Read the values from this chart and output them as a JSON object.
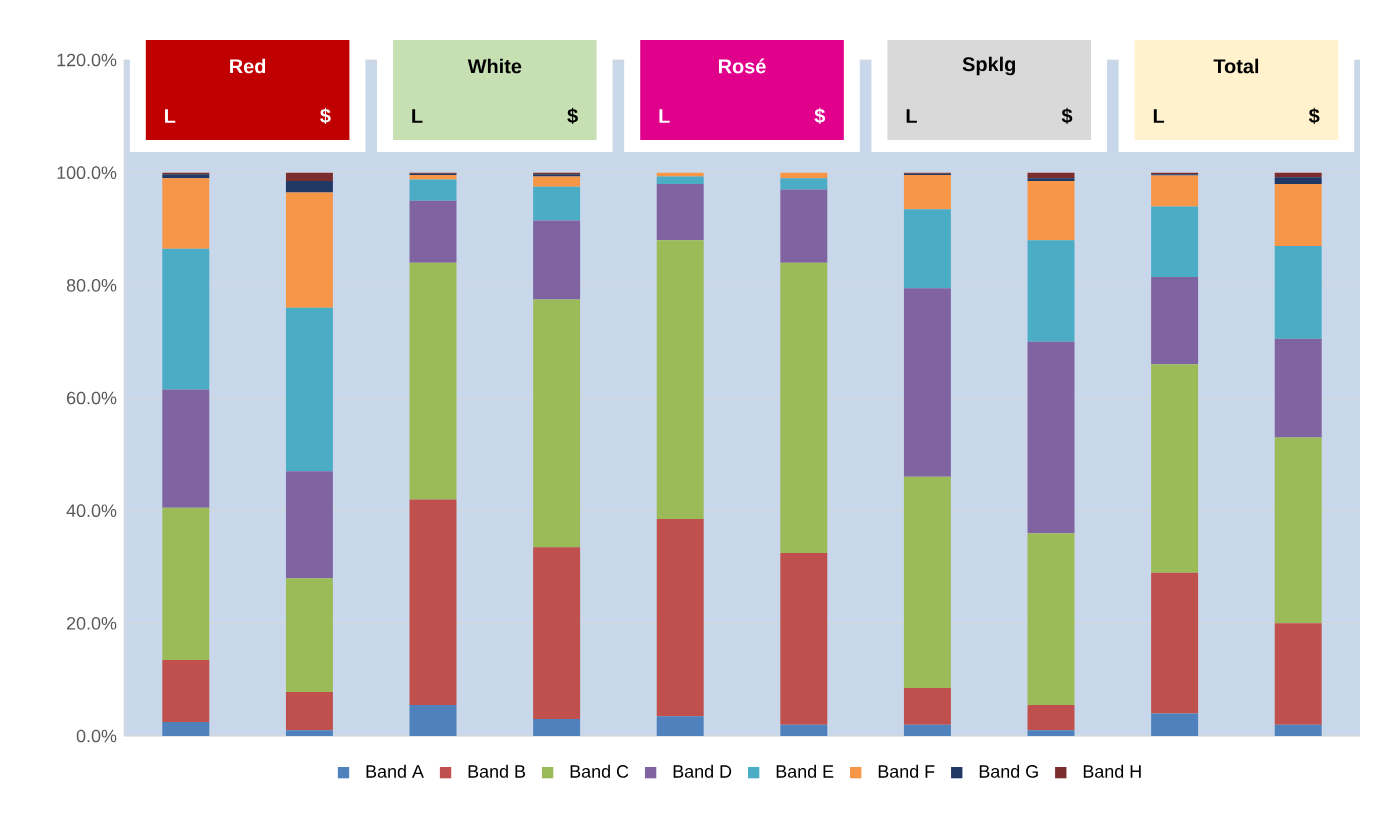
{
  "chart_data": {
    "type": "bar",
    "stacked": true,
    "categories": [
      "L",
      "$",
      "L",
      "$",
      "L",
      "$",
      "L",
      "$",
      "L",
      "$"
    ],
    "annotations": [
      "Red",
      "White",
      "Rosé",
      "Spklg",
      "Total"
    ],
    "series": [
      {
        "name": "Band A",
        "color": "#4f81bd",
        "values": [
          2.5,
          1,
          5.5,
          3,
          3.5,
          2,
          2,
          1,
          4,
          2
        ]
      },
      {
        "name": "Band B",
        "color": "#c0504d",
        "values": [
          11,
          6.8,
          36.5,
          30.5,
          35,
          30.5,
          6.5,
          4.5,
          25,
          18
        ]
      },
      {
        "name": "Band C",
        "color": "#9bbb59",
        "values": [
          27,
          20.2,
          42,
          44,
          49.5,
          51.5,
          37.5,
          30.5,
          37,
          33
        ]
      },
      {
        "name": "Band D",
        "color": "#8064a2",
        "values": [
          21,
          19,
          11,
          14,
          10,
          13,
          33.5,
          34,
          15.5,
          17.5
        ]
      },
      {
        "name": "Band E",
        "color": "#4bacc6",
        "values": [
          25,
          29,
          3.8,
          6,
          1.3,
          2,
          14,
          18,
          12.5,
          16.5
        ]
      },
      {
        "name": "Band F",
        "color": "#f79646",
        "values": [
          12.5,
          20.5,
          0.8,
          1.8,
          0.7,
          1,
          6.1,
          10.5,
          5.5,
          11
        ]
      },
      {
        "name": "Band G",
        "color": "#1f3864",
        "values": [
          0.7,
          2,
          0.2,
          0.4,
          0,
          0,
          0.2,
          0.5,
          0.2,
          1.2
        ]
      },
      {
        "name": "Band H",
        "color": "#7b2c2c",
        "values": [
          0.3,
          1.5,
          0.2,
          0.3,
          0,
          0,
          0.2,
          1,
          0.3,
          0.8
        ]
      }
    ],
    "ylim": [
      0,
      120
    ],
    "yticks": [
      {
        "value": 0,
        "label": "0.0%"
      },
      {
        "value": 20,
        "label": "20.0%"
      },
      {
        "value": 40,
        "label": "40.0%"
      },
      {
        "value": 60,
        "label": "60.0%"
      },
      {
        "value": 80,
        "label": "80.0%"
      },
      {
        "value": 100,
        "label": "100.0%"
      },
      {
        "value": 120,
        "label": "120.0%"
      }
    ],
    "grid": "y",
    "legend": "bottom"
  }
}
